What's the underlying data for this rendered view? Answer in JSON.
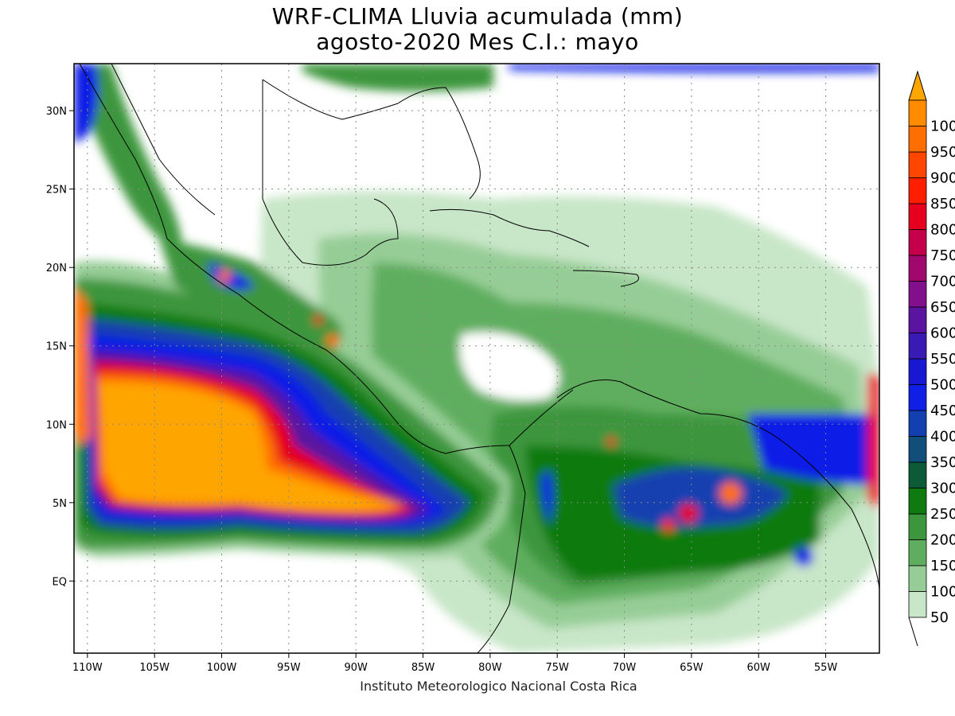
{
  "title": {
    "line1": "WRF-CLIMA Lluvia acumulada (mm)",
    "line2": "agosto-2020 Mes C.I.: mayo"
  },
  "footer": "Instituto Meteorologico Nacional Costa Rica",
  "map": {
    "lon_range": [
      -111,
      -51
    ],
    "lat_range": [
      -4.6,
      33
    ],
    "lon_ticks": [
      {
        "value": -110,
        "label": "110W"
      },
      {
        "value": -105,
        "label": "105W"
      },
      {
        "value": -100,
        "label": "100W"
      },
      {
        "value": -95,
        "label": "95W"
      },
      {
        "value": -90,
        "label": "90W"
      },
      {
        "value": -85,
        "label": "85W"
      },
      {
        "value": -80,
        "label": "80W"
      },
      {
        "value": -75,
        "label": "75W"
      },
      {
        "value": -70,
        "label": "70W"
      },
      {
        "value": -65,
        "label": "65W"
      },
      {
        "value": -60,
        "label": "60W"
      },
      {
        "value": -55,
        "label": "55W"
      }
    ],
    "lat_ticks": [
      {
        "value": 30,
        "label": "30N"
      },
      {
        "value": 25,
        "label": "25N"
      },
      {
        "value": 20,
        "label": "20N"
      },
      {
        "value": 15,
        "label": "15N"
      },
      {
        "value": 10,
        "label": "10N"
      },
      {
        "value": 5,
        "label": "5N"
      },
      {
        "value": 0,
        "label": "EQ"
      }
    ],
    "grid": "dotted"
  },
  "colorbar": {
    "levels": [
      {
        "label": "50",
        "color": "#c8e6c8"
      },
      {
        "label": "100",
        "color": "#96cd96"
      },
      {
        "label": "150",
        "color": "#5fae5f"
      },
      {
        "label": "200",
        "color": "#3c963c"
      },
      {
        "label": "250",
        "color": "#0f7a0f"
      },
      {
        "label": "300",
        "color": "#0c5a38"
      },
      {
        "label": "350",
        "color": "#114f7a"
      },
      {
        "label": "400",
        "color": "#1240b0"
      },
      {
        "label": "450",
        "color": "#0f1fe6"
      },
      {
        "label": "500",
        "color": "#1818d2"
      },
      {
        "label": "550",
        "color": "#3a1ab4"
      },
      {
        "label": "600",
        "color": "#5a14a0"
      },
      {
        "label": "650",
        "color": "#820f8c"
      },
      {
        "label": "700",
        "color": "#a0086e"
      },
      {
        "label": "750",
        "color": "#c4004a"
      },
      {
        "label": "800",
        "color": "#e6001e"
      },
      {
        "label": "850",
        "color": "#ff1e00"
      },
      {
        "label": "900",
        "color": "#ff4600"
      },
      {
        "label": "950",
        "color": "#ff6e00"
      },
      {
        "label": "100",
        "color": "#ff8c00"
      }
    ],
    "top_arrow_color": "#ffa500",
    "below_color": "#ffffff"
  }
}
